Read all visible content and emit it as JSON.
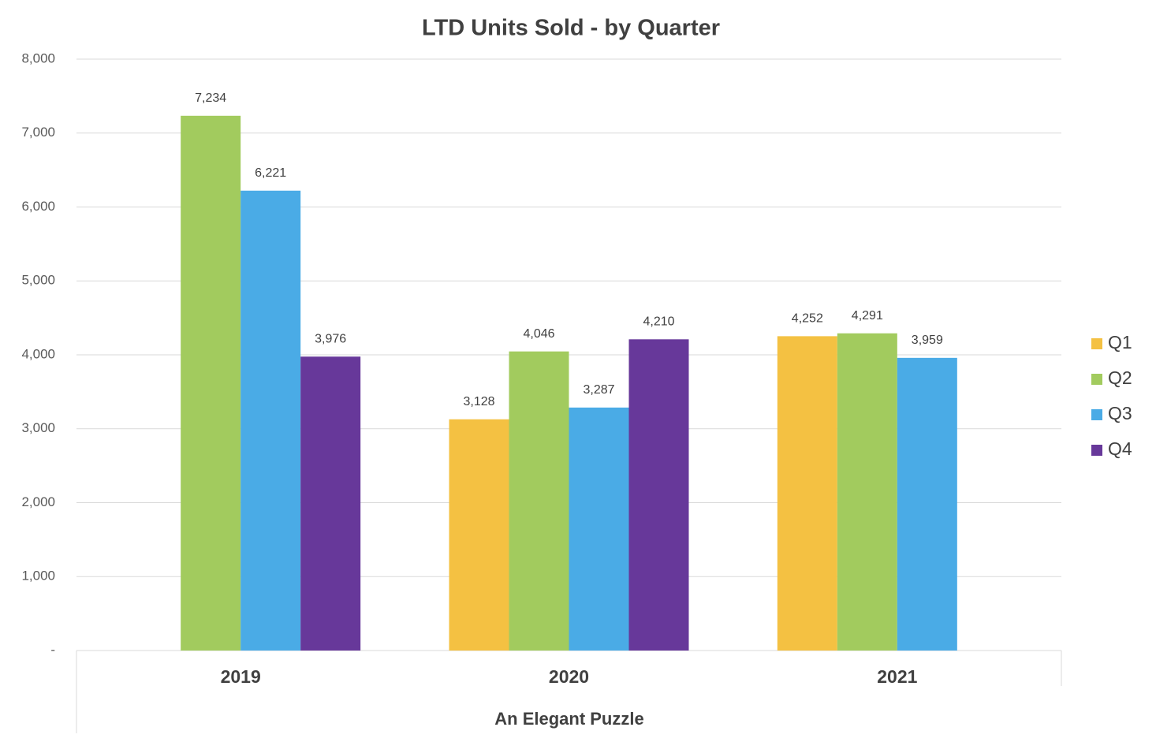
{
  "chart_data": {
    "type": "bar",
    "title": "LTD Units Sold - by Quarter",
    "x_label": "An Elegant Puzzle",
    "categories": [
      "2019",
      "2020",
      "2021"
    ],
    "series": [
      {
        "name": "Q1",
        "color": "#f4c142",
        "values": [
          null,
          3128,
          4252
        ],
        "value_labels": [
          null,
          "3,128",
          "4,252"
        ]
      },
      {
        "name": "Q2",
        "color": "#a2cb5e",
        "values": [
          7234,
          4046,
          4291
        ],
        "value_labels": [
          "7,234",
          "4,046",
          "4,291"
        ]
      },
      {
        "name": "Q3",
        "color": "#4aabe6",
        "values": [
          6221,
          3287,
          3959
        ],
        "value_labels": [
          "6,221",
          "3,287",
          "3,959"
        ]
      },
      {
        "name": "Q4",
        "color": "#67389a",
        "values": [
          3976,
          4210,
          null
        ],
        "value_labels": [
          "3,976",
          "4,210",
          null
        ]
      }
    ],
    "ylim": [
      0,
      8000
    ],
    "yticks": [
      {
        "value": 0,
        "label": "-"
      },
      {
        "value": 1000,
        "label": "1,000"
      },
      {
        "value": 2000,
        "label": "2,000"
      },
      {
        "value": 3000,
        "label": "3,000"
      },
      {
        "value": 4000,
        "label": "4,000"
      },
      {
        "value": 5000,
        "label": "5,000"
      },
      {
        "value": 6000,
        "label": "6,000"
      },
      {
        "value": 7000,
        "label": "7,000"
      },
      {
        "value": 8000,
        "label": "8,000"
      }
    ],
    "grid": true,
    "legend": "right"
  }
}
